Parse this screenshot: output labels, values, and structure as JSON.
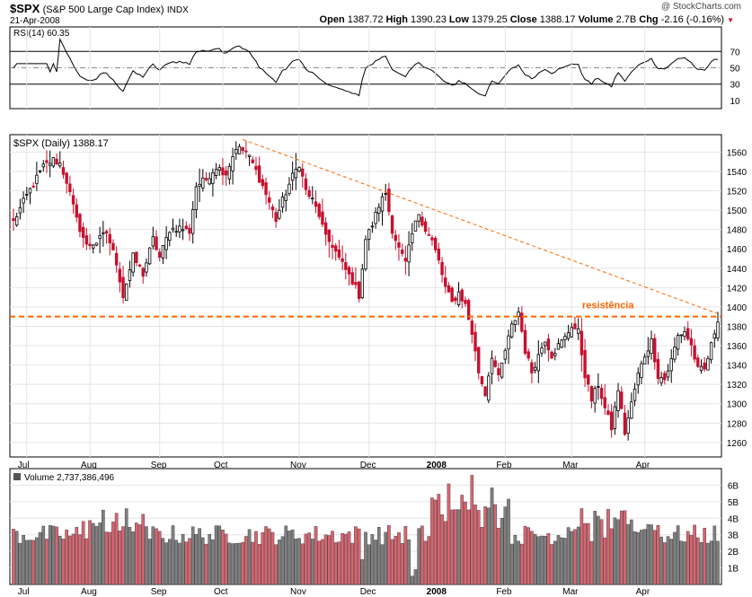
{
  "header": {
    "symbol": "$SPX",
    "name": "(S&P 500 Large Cap Index)",
    "exchange": "INDX",
    "date": "21-Apr-2008",
    "watermark": "@ StockCharts.com",
    "quote": [
      {
        "label": "Open",
        "value": "1387.72"
      },
      {
        "label": "High",
        "value": "1390.23"
      },
      {
        "label": "Low",
        "value": "1379.25"
      },
      {
        "label": "Close",
        "value": "1388.17"
      },
      {
        "label": "Volume",
        "value": "2.7B"
      },
      {
        "label": "Chg",
        "value": "-2.16 (-0.16%)"
      }
    ],
    "chg_arrow": "▼"
  },
  "colors": {
    "up": "#000000",
    "down": "#c8102e",
    "vol_up": "#808080",
    "vol_down": "#d96570",
    "annotation": "#ff6600",
    "grid": "#e4e4e4"
  },
  "chart_data": [
    {
      "type": "line",
      "panel": "rsi",
      "label": "RSI(14) 60.35",
      "ylim": [
        0,
        100
      ],
      "levels": [
        30,
        70
      ],
      "midline": 50,
      "y_ticks": [
        "70",
        "50",
        "30",
        "10"
      ],
      "last_value": 60.35
    },
    {
      "type": "candlestick",
      "panel": "price",
      "label": "$SPX (Daily) 1388.17",
      "ylim": [
        1245,
        1578
      ],
      "y_ticks": [
        1260,
        1280,
        1300,
        1320,
        1340,
        1360,
        1380,
        1400,
        1420,
        1440,
        1460,
        1480,
        1500,
        1520,
        1540,
        1560
      ],
      "x_ticks": [
        "Jul",
        "Aug",
        "Sep",
        "Oct",
        "Nov",
        "Dec",
        "2008",
        "Feb",
        "Mar",
        "Apr"
      ],
      "grid": true,
      "anchors": [
        {
          "d": 0,
          "c": 1488
        },
        {
          "d": 4,
          "c": 1515
        },
        {
          "d": 9,
          "c": 1545
        },
        {
          "d": 12,
          "c": 1552
        },
        {
          "d": 14,
          "c": 1548
        },
        {
          "d": 16,
          "c": 1530
        },
        {
          "d": 19,
          "c": 1490
        },
        {
          "d": 22,
          "c": 1463
        },
        {
          "d": 25,
          "c": 1467
        },
        {
          "d": 28,
          "c": 1477
        },
        {
          "d": 31,
          "c": 1446
        },
        {
          "d": 33,
          "c": 1411
        },
        {
          "d": 36,
          "c": 1452
        },
        {
          "d": 39,
          "c": 1434
        },
        {
          "d": 42,
          "c": 1470
        },
        {
          "d": 44,
          "c": 1451
        },
        {
          "d": 47,
          "c": 1480
        },
        {
          "d": 50,
          "c": 1482
        },
        {
          "d": 53,
          "c": 1478
        },
        {
          "d": 55,
          "c": 1525
        },
        {
          "d": 58,
          "c": 1532
        },
        {
          "d": 61,
          "c": 1545
        },
        {
          "d": 64,
          "c": 1538
        },
        {
          "d": 67,
          "c": 1565
        },
        {
          "d": 70,
          "c": 1560
        },
        {
          "d": 72,
          "c": 1548
        },
        {
          "d": 75,
          "c": 1525
        },
        {
          "d": 77,
          "c": 1508
        },
        {
          "d": 79,
          "c": 1490
        },
        {
          "d": 81,
          "c": 1510
        },
        {
          "d": 84,
          "c": 1535
        },
        {
          "d": 86,
          "c": 1548
        },
        {
          "d": 88,
          "c": 1520
        },
        {
          "d": 90,
          "c": 1510
        },
        {
          "d": 92,
          "c": 1495
        },
        {
          "d": 94,
          "c": 1471
        },
        {
          "d": 96,
          "c": 1464
        },
        {
          "d": 98,
          "c": 1450
        },
        {
          "d": 100,
          "c": 1438
        },
        {
          "d": 102,
          "c": 1427
        },
        {
          "d": 104,
          "c": 1412
        },
        {
          "d": 106,
          "c": 1470
        },
        {
          "d": 108,
          "c": 1485
        },
        {
          "d": 110,
          "c": 1505
        },
        {
          "d": 112,
          "c": 1518
        },
        {
          "d": 114,
          "c": 1480
        },
        {
          "d": 116,
          "c": 1460
        },
        {
          "d": 118,
          "c": 1445
        },
        {
          "d": 120,
          "c": 1475
        },
        {
          "d": 122,
          "c": 1497
        },
        {
          "d": 124,
          "c": 1480
        },
        {
          "d": 126,
          "c": 1468
        },
        {
          "d": 128,
          "c": 1447
        },
        {
          "d": 130,
          "c": 1420
        },
        {
          "d": 132,
          "c": 1404
        },
        {
          "d": 134,
          "c": 1415
        },
        {
          "d": 136,
          "c": 1402
        },
        {
          "d": 138,
          "c": 1373
        },
        {
          "d": 140,
          "c": 1333
        },
        {
          "d": 142,
          "c": 1310
        },
        {
          "d": 144,
          "c": 1350
        },
        {
          "d": 146,
          "c": 1326
        },
        {
          "d": 148,
          "c": 1355
        },
        {
          "d": 150,
          "c": 1380
        },
        {
          "d": 152,
          "c": 1395
        },
        {
          "d": 154,
          "c": 1355
        },
        {
          "d": 156,
          "c": 1333
        },
        {
          "d": 158,
          "c": 1350
        },
        {
          "d": 160,
          "c": 1367
        },
        {
          "d": 162,
          "c": 1350
        },
        {
          "d": 164,
          "c": 1360
        },
        {
          "d": 166,
          "c": 1368
        },
        {
          "d": 168,
          "c": 1381
        },
        {
          "d": 170,
          "c": 1374
        },
        {
          "d": 172,
          "c": 1330
        },
        {
          "d": 174,
          "c": 1304
        },
        {
          "d": 176,
          "c": 1320
        },
        {
          "d": 178,
          "c": 1295
        },
        {
          "d": 180,
          "c": 1275
        },
        {
          "d": 182,
          "c": 1315
        },
        {
          "d": 184,
          "c": 1270
        },
        {
          "d": 186,
          "c": 1300
        },
        {
          "d": 188,
          "c": 1330
        },
        {
          "d": 190,
          "c": 1350
        },
        {
          "d": 192,
          "c": 1365
        },
        {
          "d": 194,
          "c": 1329
        },
        {
          "d": 196,
          "c": 1325
        },
        {
          "d": 198,
          "c": 1345
        },
        {
          "d": 200,
          "c": 1370
        },
        {
          "d": 202,
          "c": 1375
        },
        {
          "d": 204,
          "c": 1360
        },
        {
          "d": 206,
          "c": 1335
        },
        {
          "d": 208,
          "c": 1335
        },
        {
          "d": 210,
          "c": 1360
        },
        {
          "d": 212,
          "c": 1388
        }
      ],
      "annotations": {
        "resistance_label": "resistência",
        "resistance_level": 1390,
        "trendline": {
          "from": {
            "d": 69,
            "value": 1573
          },
          "to": {
            "d": 212,
            "value": 1393
          }
        }
      }
    },
    {
      "type": "bar",
      "panel": "volume",
      "label": "Volume 2,737,386,496",
      "ylim": [
        0,
        7
      ],
      "y_ticks": [
        "1B",
        "2B",
        "3B",
        "4B",
        "5B",
        "6B"
      ],
      "units": "billions of shares"
    }
  ]
}
